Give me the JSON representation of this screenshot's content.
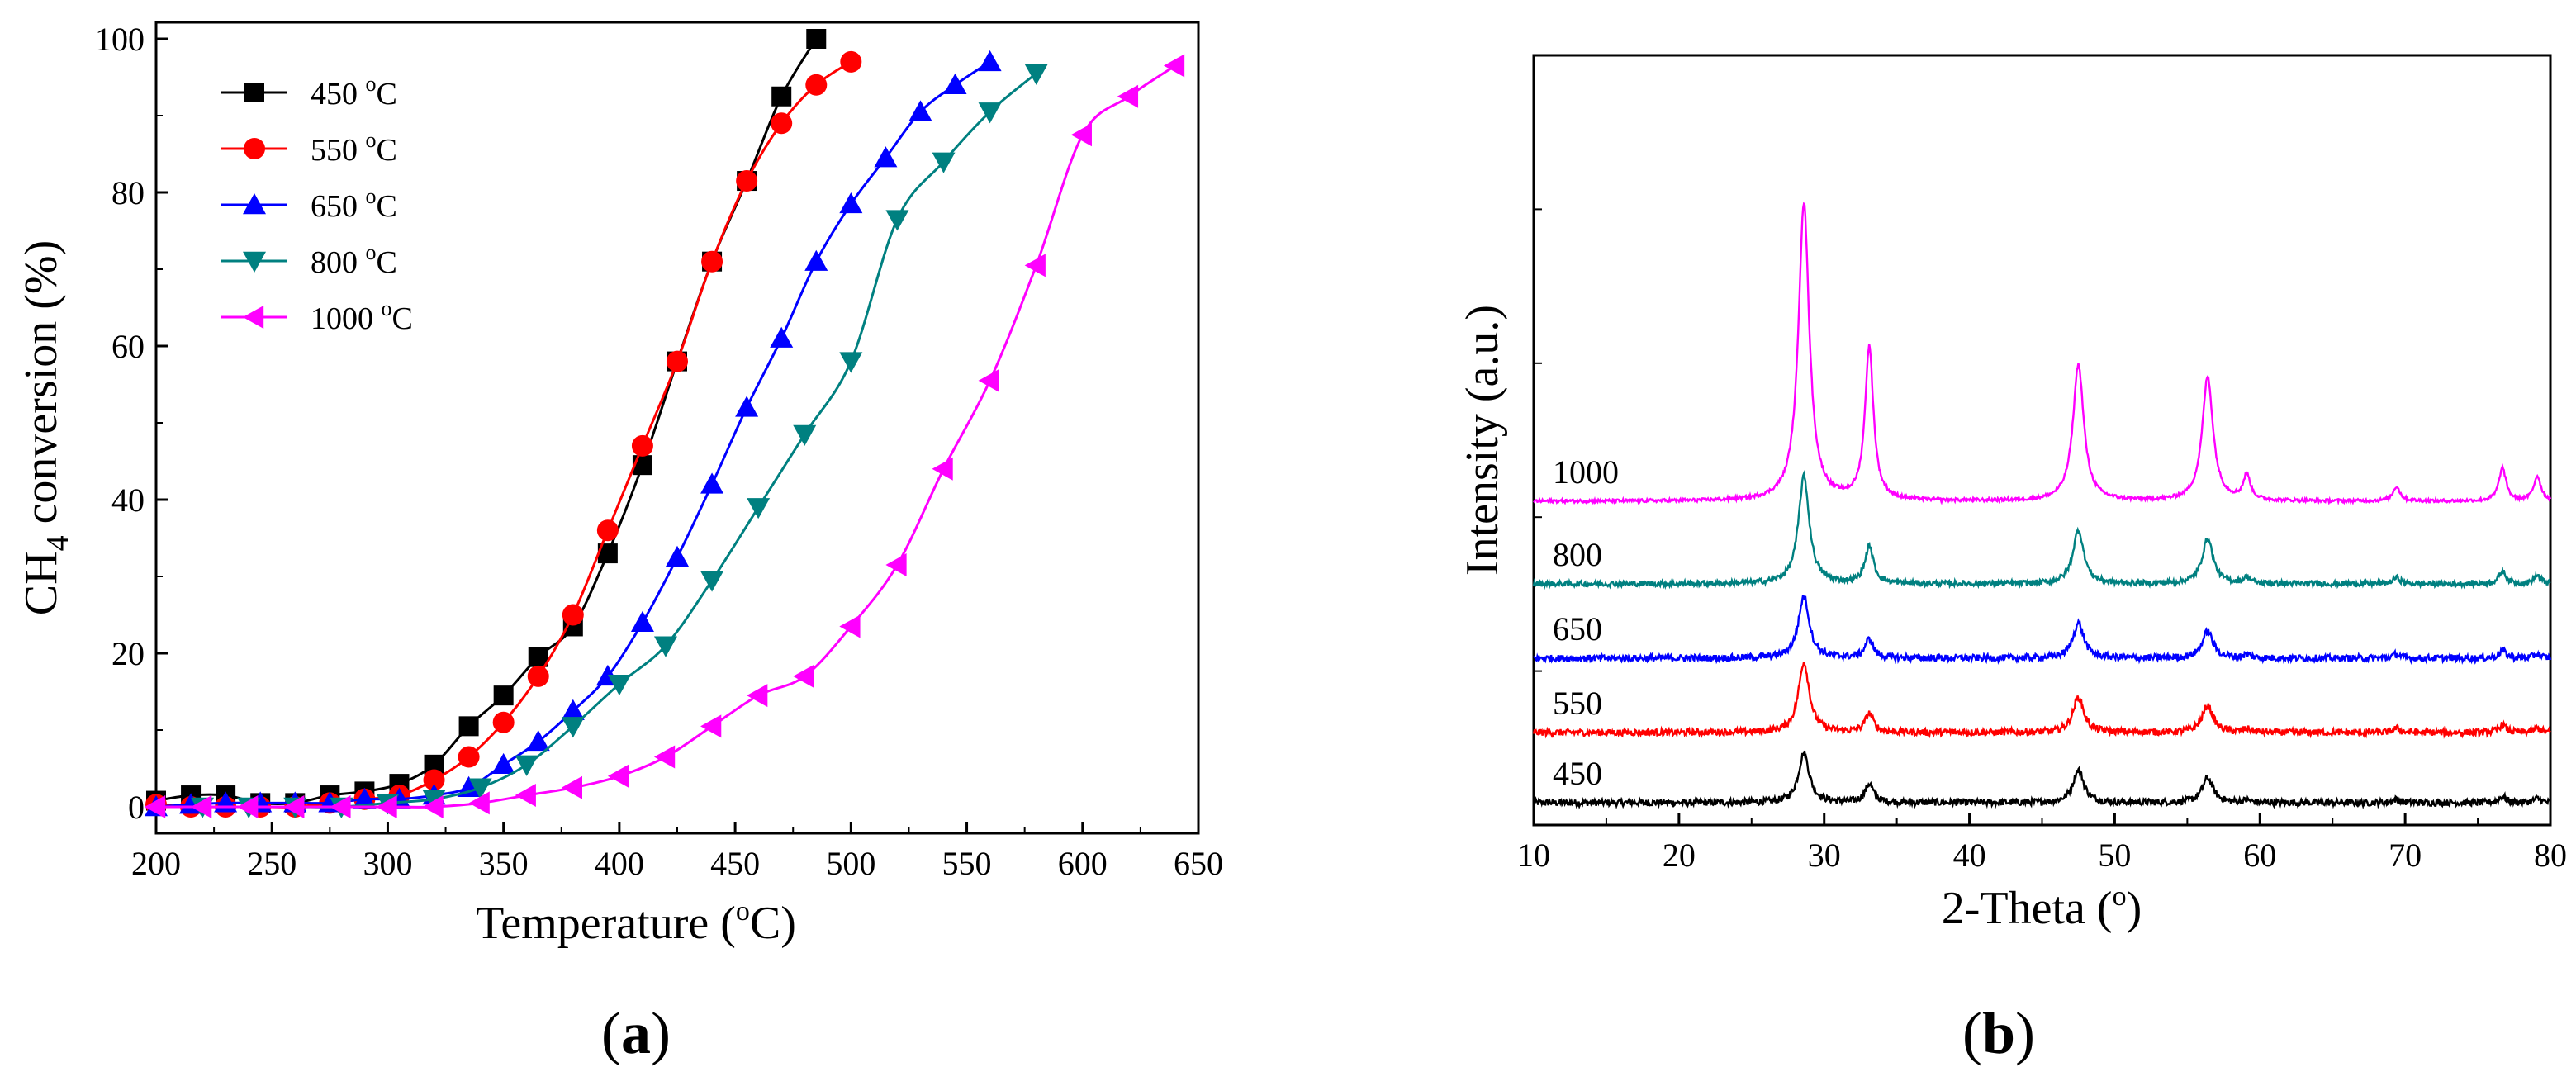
{
  "chart_data": [
    {
      "panel": "a",
      "type": "line",
      "caption": "a",
      "xlabel": "Temperature",
      "xlabel_unit_sup": "o",
      "xlabel_unit": "C",
      "ylabel_main": "CH",
      "ylabel_sub": "4",
      "ylabel_rest": " conversion (%)",
      "xlim": [
        200,
        650
      ],
      "ylim": [
        0,
        100
      ],
      "xticks": [
        200,
        250,
        300,
        350,
        400,
        450,
        500,
        550,
        600,
        650
      ],
      "yticks": [
        0,
        20,
        40,
        60,
        80,
        100
      ],
      "legend_position": "top-left",
      "series": [
        {
          "name": "450",
          "unit_sup": "o",
          "unit": "C",
          "color": "#000000",
          "marker": "square",
          "x": [
            200,
            215,
            230,
            245,
            260,
            275,
            290,
            305,
            320,
            335,
            350,
            365,
            380,
            395,
            410,
            425,
            440,
            455,
            470,
            485
          ],
          "y": [
            0.8,
            1.5,
            1.5,
            0.5,
            0.5,
            1.5,
            2,
            3,
            5.5,
            10.5,
            14.5,
            19.5,
            23.5,
            33,
            44.5,
            58,
            71,
            81.5,
            92.5,
            100
          ]
        },
        {
          "name": "550",
          "unit_sup": "o",
          "unit": "C",
          "color": "#ff0000",
          "marker": "circle",
          "x": [
            200,
            215,
            230,
            245,
            260,
            275,
            290,
            305,
            320,
            335,
            350,
            365,
            380,
            395,
            410,
            425,
            440,
            455,
            470,
            485,
            500
          ],
          "y": [
            0.3,
            0,
            0,
            0,
            0,
            0.5,
            1,
            1.5,
            3.5,
            6.5,
            11,
            17,
            25,
            36,
            47,
            58,
            71,
            81.5,
            89,
            94,
            97
          ]
        },
        {
          "name": "650",
          "unit_sup": "o",
          "unit": "C",
          "color": "#0000ff",
          "marker": "triangle-up",
          "x": [
            200,
            215,
            230,
            245,
            260,
            275,
            290,
            305,
            320,
            335,
            350,
            365,
            380,
            395,
            410,
            425,
            440,
            455,
            470,
            485,
            500,
            515,
            530,
            545,
            560
          ],
          "y": [
            0,
            0.3,
            0.5,
            0.5,
            0.5,
            0.5,
            1,
            1,
            1.5,
            2.5,
            5.5,
            8.5,
            12.5,
            17,
            24,
            32.5,
            42,
            52,
            61,
            71,
            78.5,
            84.5,
            90.5,
            94,
            97
          ]
        },
        {
          "name": "800",
          "unit_sup": "o",
          "unit": "C",
          "color": "#008080",
          "marker": "triangle-down",
          "x": [
            220,
            240,
            260,
            280,
            300,
            320,
            340,
            360,
            380,
            400,
            420,
            440,
            460,
            480,
            500,
            520,
            540,
            560,
            580
          ],
          "y": [
            0,
            0,
            0,
            0,
            0.5,
            1,
            2.5,
            5.5,
            10.5,
            16,
            21,
            29.5,
            39,
            48.5,
            58,
            76.5,
            84,
            90.5,
            95.5
          ]
        },
        {
          "name": "1000",
          "unit_sup": "o",
          "unit": "C",
          "color": "#ff00ff",
          "marker": "triangle-left",
          "x": [
            200,
            220,
            240,
            260,
            280,
            300,
            320,
            340,
            360,
            380,
            400,
            420,
            440,
            460,
            480,
            500,
            520,
            540,
            560,
            580,
            600,
            620,
            640
          ],
          "y": [
            0,
            0,
            0,
            0,
            0,
            0,
            0,
            0.5,
            1.5,
            2.5,
            4,
            6.5,
            10.5,
            14.5,
            17,
            23.5,
            31.5,
            44,
            55.5,
            70.5,
            87.5,
            92.5,
            96.5
          ]
        }
      ]
    },
    {
      "panel": "b",
      "type": "line",
      "caption": "b",
      "xlabel": "2-Theta (",
      "xlabel_sup": "o",
      "xlabel_end": ")",
      "ylabel": "Intensity (a.u.)",
      "xlim": [
        10,
        80
      ],
      "xticks": [
        10,
        20,
        30,
        40,
        50,
        60,
        70,
        80
      ],
      "yticks": [],
      "peaks": [
        {
          "pos": 28.6,
          "width": 0.45
        },
        {
          "pos": 33.1,
          "width": 0.35
        },
        {
          "pos": 47.5,
          "width": 0.45
        },
        {
          "pos": 56.4,
          "width": 0.45
        },
        {
          "pos": 59.1,
          "width": 0.3
        },
        {
          "pos": 69.4,
          "width": 0.3
        },
        {
          "pos": 76.7,
          "width": 0.3
        },
        {
          "pos": 79.1,
          "width": 0.3
        }
      ],
      "series": [
        {
          "name": "450",
          "color": "#000000",
          "baseline": 0,
          "heights": [
            12,
            4.5,
            8,
            6,
            0.5,
            0.8,
            1.5,
            1
          ],
          "noise": 1.0
        },
        {
          "name": "550",
          "color": "#ff0000",
          "baseline": 17,
          "heights": [
            17,
            4.5,
            8.5,
            6.5,
            0.8,
            1,
            1.8,
            1
          ],
          "noise": 1.0
        },
        {
          "name": "650",
          "color": "#0000ff",
          "baseline": 35,
          "heights": [
            15,
            4.5,
            8.5,
            6.5,
            0.8,
            1,
            1.8,
            1
          ],
          "noise": 1.0
        },
        {
          "name": "800",
          "color": "#008080",
          "baseline": 53,
          "heights": [
            26,
            9,
            13,
            11,
            1.5,
            1.5,
            3,
            2
          ],
          "noise": 0.8
        },
        {
          "name": "1000",
          "color": "#ff00ff",
          "baseline": 73,
          "heights": [
            72,
            37,
            33,
            30,
            6,
            3.5,
            8,
            6
          ],
          "noise": 0.5
        }
      ]
    }
  ]
}
